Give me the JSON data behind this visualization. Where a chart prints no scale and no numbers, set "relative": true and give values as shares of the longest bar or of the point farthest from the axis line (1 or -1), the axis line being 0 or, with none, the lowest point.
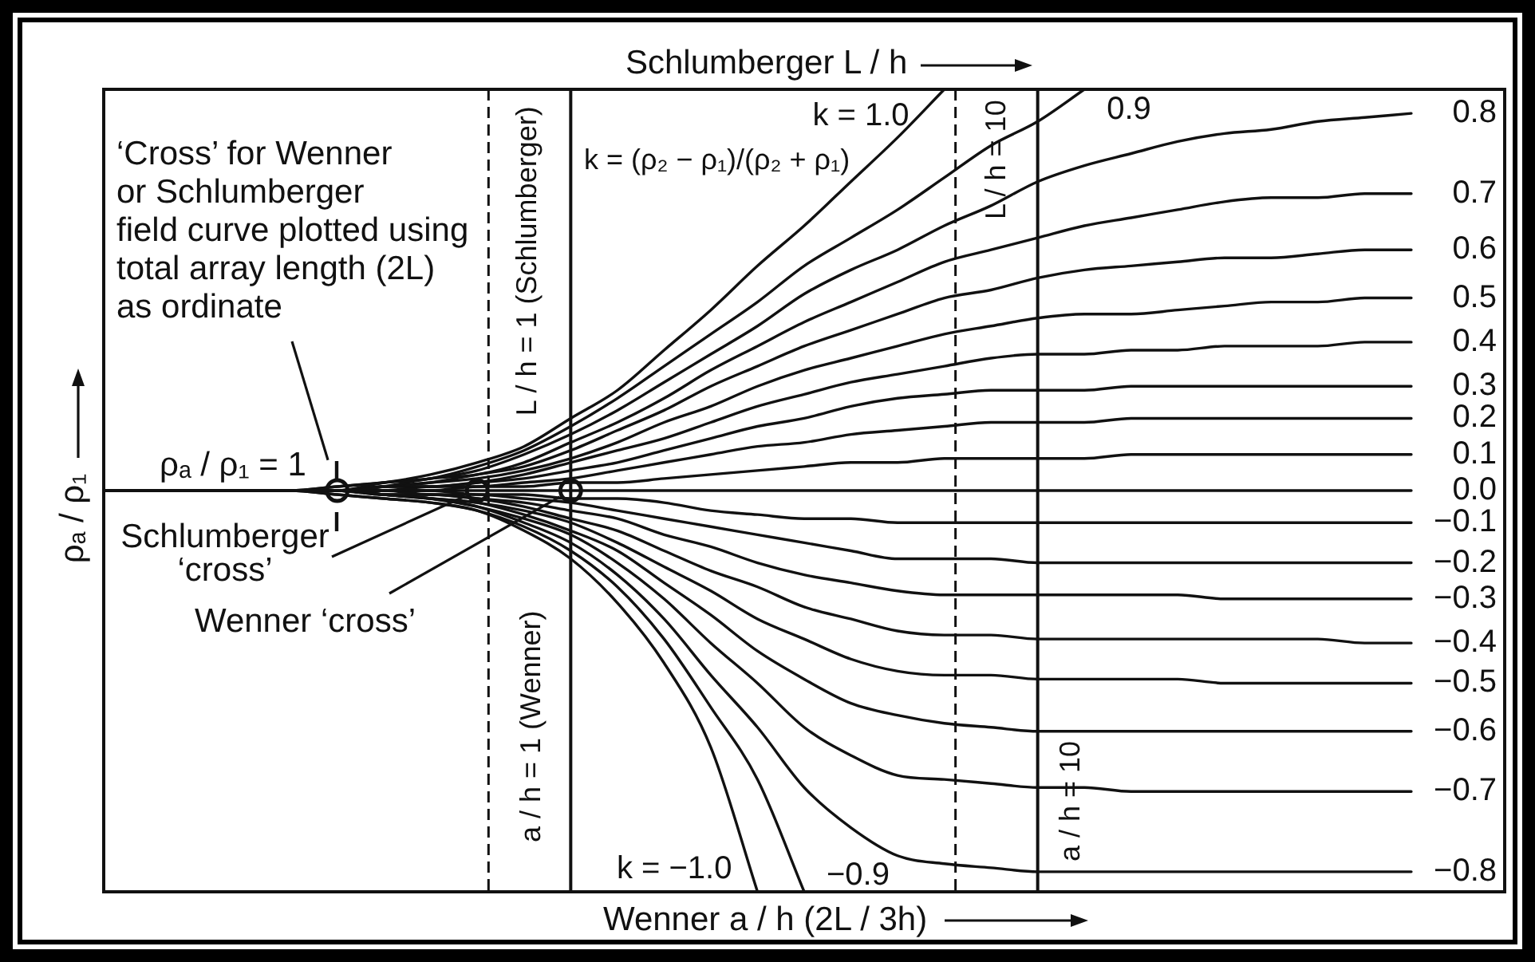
{
  "chart_data": {
    "type": "line",
    "xlabel": "Wenner a / h (2L / 3h)",
    "x2label": "Schlumberger L / h",
    "ylabel": "ρₐ / ρ₁",
    "relative": true,
    "tick_labels": false,
    "marker": "none",
    "categories": [
      null,
      null,
      null,
      null,
      null,
      null,
      null,
      null,
      null,
      null,
      null,
      null,
      null,
      null,
      null,
      null,
      null,
      null,
      null,
      null,
      null,
      null,
      null,
      null,
      null,
      null,
      null,
      null,
      null,
      null,
      null
    ],
    "series": [
      {
        "name": "k = 1.0",
        "color": "#111111",
        "values": [
          0.5,
          0.5,
          0.5,
          0.5,
          0.5,
          0.505,
          0.51,
          0.52,
          0.535,
          0.555,
          0.59,
          0.625,
          0.675,
          0.725,
          0.78,
          0.83,
          0.885,
          0.94,
          1,
          null,
          null,
          null,
          null,
          null,
          null,
          null,
          null,
          null,
          null,
          null,
          null
        ]
      },
      {
        "name": "0.9",
        "color": "#111111",
        "values": [
          0.5,
          0.5,
          0.5,
          0.5,
          0.5,
          0.505,
          0.51,
          0.515,
          0.53,
          0.55,
          0.58,
          0.615,
          0.655,
          0.695,
          0.735,
          0.78,
          0.815,
          0.85,
          0.89,
          0.93,
          0.96,
          1,
          null,
          null,
          null,
          null,
          null,
          null,
          null,
          null,
          null
        ]
      },
      {
        "name": "0.8",
        "color": "#111111",
        "values": [
          0.5,
          0.5,
          0.5,
          0.5,
          0.5,
          0.5,
          0.51,
          0.515,
          0.525,
          0.545,
          0.57,
          0.6,
          0.635,
          0.67,
          0.705,
          0.745,
          0.775,
          0.8,
          0.83,
          0.855,
          0.885,
          0.905,
          0.92,
          0.935,
          0.945,
          0.95,
          0.96,
          0.965,
          0.97,
          null,
          null
        ]
      },
      {
        "name": "0.7",
        "color": "#111111",
        "values": [
          0.5,
          0.5,
          0.5,
          0.5,
          0.5,
          0.5,
          0.505,
          0.515,
          0.52,
          0.535,
          0.56,
          0.585,
          0.615,
          0.65,
          0.68,
          0.71,
          0.735,
          0.76,
          0.785,
          0.8,
          0.815,
          0.83,
          0.84,
          0.85,
          0.86,
          0.865,
          0.865,
          0.87,
          0.87,
          null,
          null
        ]
      },
      {
        "name": "0.6",
        "color": "#111111",
        "values": [
          0.5,
          0.5,
          0.5,
          0.5,
          0.5,
          0.5,
          0.505,
          0.51,
          0.52,
          0.53,
          0.55,
          0.575,
          0.6,
          0.63,
          0.655,
          0.68,
          0.7,
          0.72,
          0.74,
          0.75,
          0.765,
          0.775,
          0.78,
          0.785,
          0.79,
          0.79,
          0.795,
          0.8,
          0.8,
          null,
          null
        ]
      },
      {
        "name": "0.5",
        "color": "#111111",
        "values": [
          0.5,
          0.5,
          0.5,
          0.5,
          0.5,
          0.5,
          0.505,
          0.51,
          0.515,
          0.525,
          0.54,
          0.56,
          0.585,
          0.605,
          0.63,
          0.65,
          0.665,
          0.68,
          0.695,
          0.705,
          0.715,
          0.72,
          0.72,
          0.725,
          0.73,
          0.735,
          0.735,
          0.74,
          0.74,
          null,
          null
        ]
      },
      {
        "name": "0.4",
        "color": "#111111",
        "values": [
          0.5,
          0.5,
          0.5,
          0.5,
          0.5,
          0.5,
          0.505,
          0.505,
          0.51,
          0.52,
          0.535,
          0.55,
          0.565,
          0.585,
          0.605,
          0.62,
          0.635,
          0.645,
          0.655,
          0.665,
          0.67,
          0.67,
          0.675,
          0.675,
          0.68,
          0.68,
          0.68,
          0.685,
          0.685,
          null,
          null
        ]
      },
      {
        "name": "0.3",
        "color": "#111111",
        "values": [
          0.5,
          0.5,
          0.5,
          0.5,
          0.5,
          0.5,
          0.505,
          0.505,
          0.51,
          0.515,
          0.525,
          0.535,
          0.55,
          0.565,
          0.58,
          0.59,
          0.605,
          0.615,
          0.62,
          0.625,
          0.625,
          0.625,
          0.63,
          0.63,
          0.63,
          0.63,
          0.63,
          0.63,
          0.63,
          null,
          null
        ]
      },
      {
        "name": "0.2",
        "color": "#111111",
        "values": [
          0.5,
          0.5,
          0.5,
          0.5,
          0.5,
          0.5,
          0.5,
          0.505,
          0.505,
          0.51,
          0.515,
          0.525,
          0.535,
          0.545,
          0.555,
          0.56,
          0.57,
          0.575,
          0.58,
          0.585,
          0.585,
          0.585,
          0.59,
          0.59,
          0.59,
          0.59,
          0.59,
          0.59,
          0.59,
          null,
          null
        ]
      },
      {
        "name": "0.1",
        "color": "#111111",
        "values": [
          0.5,
          0.5,
          0.5,
          0.5,
          0.5,
          0.5,
          0.5,
          0.5,
          0.505,
          0.505,
          0.51,
          0.51,
          0.515,
          0.52,
          0.525,
          0.53,
          0.535,
          0.535,
          0.54,
          0.54,
          0.54,
          0.54,
          0.545,
          0.545,
          0.545,
          0.545,
          0.545,
          0.545,
          0.545,
          null,
          null
        ]
      },
      {
        "name": "0.0",
        "color": "#111111",
        "values": [
          0.5,
          0.5,
          0.5,
          0.5,
          0.5,
          0.5,
          0.5,
          0.5,
          0.5,
          0.5,
          0.5,
          0.5,
          0.5,
          0.5,
          0.5,
          0.5,
          0.5,
          0.5,
          0.5,
          0.5,
          0.5,
          0.5,
          0.5,
          0.5,
          0.5,
          0.5,
          0.5,
          0.5,
          0.5,
          null,
          null
        ]
      },
      {
        "name": "−0.1",
        "color": "#111111",
        "values": [
          0.5,
          0.5,
          0.5,
          0.5,
          0.5,
          0.5,
          0.5,
          0.5,
          0.495,
          0.495,
          0.49,
          0.49,
          0.485,
          0.475,
          0.47,
          0.465,
          0.465,
          0.46,
          0.46,
          0.46,
          0.46,
          0.46,
          0.46,
          0.46,
          0.46,
          0.46,
          0.46,
          0.46,
          0.46,
          null,
          null
        ]
      },
      {
        "name": "−0.2",
        "color": "#111111",
        "values": [
          0.5,
          0.5,
          0.5,
          0.5,
          0.5,
          0.5,
          0.5,
          0.495,
          0.495,
          0.49,
          0.485,
          0.475,
          0.465,
          0.455,
          0.445,
          0.435,
          0.425,
          0.415,
          0.415,
          0.415,
          0.41,
          0.41,
          0.41,
          0.41,
          0.41,
          0.41,
          0.41,
          0.41,
          0.41,
          null,
          null
        ]
      },
      {
        "name": "−0.3",
        "color": "#111111",
        "values": [
          0.5,
          0.5,
          0.5,
          0.5,
          0.5,
          0.5,
          0.495,
          0.495,
          0.49,
          0.485,
          0.475,
          0.465,
          0.445,
          0.43,
          0.41,
          0.395,
          0.385,
          0.375,
          0.37,
          0.37,
          0.37,
          0.37,
          0.37,
          0.37,
          0.365,
          0.365,
          0.365,
          0.365,
          0.365,
          null,
          null
        ]
      },
      {
        "name": "−0.4",
        "color": "#111111",
        "values": [
          0.5,
          0.5,
          0.5,
          0.5,
          0.5,
          0.5,
          0.495,
          0.495,
          0.49,
          0.48,
          0.465,
          0.45,
          0.425,
          0.4,
          0.38,
          0.355,
          0.34,
          0.325,
          0.32,
          0.32,
          0.315,
          0.315,
          0.315,
          0.315,
          0.315,
          0.315,
          0.315,
          0.31,
          0.31,
          null,
          null
        ]
      },
      {
        "name": "−0.5",
        "color": "#111111",
        "values": [
          0.5,
          0.5,
          0.5,
          0.5,
          0.5,
          0.5,
          0.495,
          0.49,
          0.485,
          0.475,
          0.46,
          0.435,
          0.405,
          0.375,
          0.34,
          0.315,
          0.29,
          0.275,
          0.27,
          0.27,
          0.265,
          0.265,
          0.265,
          0.265,
          0.26,
          0.26,
          0.26,
          0.26,
          0.26,
          null,
          null
        ]
      },
      {
        "name": "−0.6",
        "color": "#111111",
        "values": [
          0.5,
          0.5,
          0.5,
          0.5,
          0.5,
          0.5,
          0.495,
          0.49,
          0.485,
          0.47,
          0.45,
          0.425,
          0.385,
          0.345,
          0.3,
          0.265,
          0.235,
          0.22,
          0.21,
          0.205,
          0.2,
          0.2,
          0.2,
          0.2,
          0.2,
          0.2,
          0.2,
          0.2,
          0.2,
          null,
          null
        ]
      },
      {
        "name": "−0.7",
        "color": "#111111",
        "values": [
          0.5,
          0.5,
          0.5,
          0.5,
          0.5,
          0.5,
          0.495,
          0.49,
          0.48,
          0.465,
          0.445,
          0.41,
          0.365,
          0.31,
          0.26,
          0.205,
          0.17,
          0.145,
          0.14,
          0.135,
          0.13,
          0.13,
          0.125,
          0.125,
          0.125,
          0.125,
          0.125,
          0.125,
          0.125,
          null,
          null
        ]
      },
      {
        "name": "−0.8",
        "color": "#111111",
        "values": [
          0.5,
          0.5,
          0.5,
          0.5,
          0.5,
          0.5,
          0.495,
          0.49,
          0.48,
          0.46,
          0.435,
          0.395,
          0.34,
          0.27,
          0.205,
          0.13,
          0.08,
          0.045,
          0.035,
          0.03,
          0.025,
          0.025,
          0.025,
          0.025,
          0.025,
          0.025,
          0.025,
          0.025,
          0.025,
          null,
          null
        ]
      },
      {
        "name": "−0.9",
        "color": "#111111",
        "values": [
          0.5,
          0.5,
          0.5,
          0.5,
          0.5,
          0.495,
          0.49,
          0.485,
          0.475,
          0.455,
          0.425,
          0.38,
          0.315,
          0.23,
          0.14,
          0,
          null,
          null,
          null,
          null,
          null,
          null,
          null,
          null,
          null,
          null,
          null,
          null,
          null,
          null,
          null
        ]
      },
      {
        "name": "k = −1.0",
        "color": "#111111",
        "values": [
          0.5,
          0.5,
          0.5,
          0.5,
          0.5,
          0.495,
          0.49,
          0.485,
          0.475,
          0.45,
          0.415,
          0.36,
          0.285,
          0.18,
          0,
          null,
          null,
          null,
          null,
          null,
          null,
          null,
          null,
          null,
          null,
          null,
          null,
          null,
          null,
          null,
          null
        ]
      },
      {
        "color": "#111111",
        "marker": "circle",
        "values": [
          null,
          null,
          null,
          null,
          null,
          0.5,
          null,
          null,
          0.5,
          null,
          0.5,
          null,
          null,
          null,
          null,
          null,
          null,
          null,
          null,
          null,
          null,
          null,
          null,
          null,
          null,
          null,
          null,
          null,
          null,
          null,
          null
        ]
      }
    ],
    "ref_lines": [
      {
        "axis": "x",
        "label": "L / h = 1 (Schlumberger)",
        "line_style": "dashed",
        "color": "#111111"
      },
      {
        "axis": "x",
        "label": "a / h = 1 (Wenner)",
        "color": "#111111"
      },
      {
        "axis": "x",
        "label": "L / h = 10",
        "line_style": "dashed",
        "color": "#111111"
      },
      {
        "axis": "x",
        "label": "a / h = 10",
        "color": "#111111"
      }
    ],
    "annotations": [
      "‘Cross’ for Wenner\nor Schlumberger\nfield curve plotted using\ntotal array length (2L)\nas ordinate",
      "k = (ρ₂ − ρ₁)/(ρ₂ + ρ₁)",
      "ρₐ / ρ₁ = 1",
      "Schlumberger\n‘cross’",
      "Wenner ‘cross’"
    ]
  }
}
